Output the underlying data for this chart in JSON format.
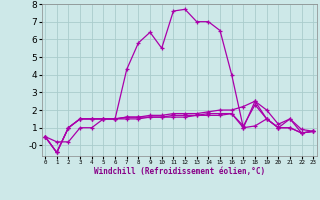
{
  "xlabel": "Windchill (Refroidissement éolien,°C)",
  "x_ticks": [
    0,
    1,
    2,
    3,
    4,
    5,
    6,
    7,
    8,
    9,
    10,
    11,
    12,
    13,
    14,
    15,
    16,
    17,
    18,
    19,
    20,
    21,
    22,
    23
  ],
  "ylim": [
    -0.6,
    8.0
  ],
  "xlim": [
    -0.3,
    23.3
  ],
  "background_color": "#cde8e8",
  "grid_color": "#aacccc",
  "line_color": "#aa00aa",
  "lines": [
    [
      0.5,
      0.2,
      0.2,
      1.0,
      1.0,
      1.5,
      1.5,
      4.3,
      5.8,
      6.4,
      5.5,
      7.6,
      7.7,
      7.0,
      7.0,
      6.5,
      4.0,
      1.0,
      2.5,
      1.5,
      1.0,
      1.5,
      0.9,
      0.8
    ],
    [
      0.5,
      -0.4,
      1.0,
      1.5,
      1.5,
      1.5,
      1.5,
      1.6,
      1.6,
      1.6,
      1.6,
      1.7,
      1.7,
      1.7,
      1.8,
      1.8,
      1.8,
      1.1,
      2.3,
      1.5,
      1.0,
      1.0,
      0.7,
      0.8
    ],
    [
      0.5,
      -0.4,
      1.0,
      1.5,
      1.5,
      1.5,
      1.5,
      1.6,
      1.6,
      1.7,
      1.7,
      1.8,
      1.8,
      1.8,
      1.9,
      2.0,
      2.0,
      2.2,
      2.5,
      2.0,
      1.2,
      1.5,
      0.7,
      0.8
    ],
    [
      0.5,
      -0.4,
      1.0,
      1.5,
      1.5,
      1.5,
      1.5,
      1.5,
      1.5,
      1.6,
      1.6,
      1.6,
      1.6,
      1.7,
      1.7,
      1.7,
      1.8,
      1.0,
      1.1,
      1.5,
      1.0,
      1.0,
      0.7,
      0.8
    ]
  ]
}
